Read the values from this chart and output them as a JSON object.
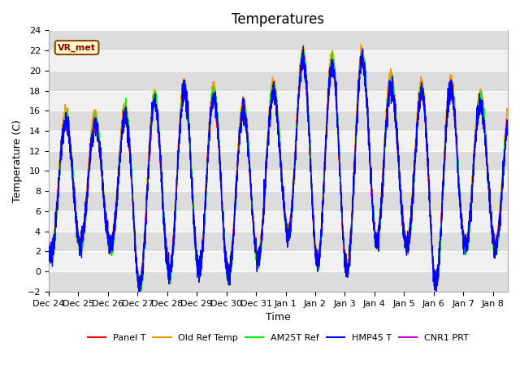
{
  "title": "Temperatures",
  "xlabel": "Time",
  "ylabel": "Temperature (C)",
  "ylim": [
    -2,
    24
  ],
  "yticks": [
    -2,
    0,
    2,
    4,
    6,
    8,
    10,
    12,
    14,
    16,
    18,
    20,
    22,
    24
  ],
  "num_days": 15.5,
  "xtick_labels": [
    "Dec 24",
    "Dec 25",
    "Dec 26",
    "Dec 27",
    "Dec 28",
    "Dec 29",
    "Dec 30",
    "Dec 31",
    "Jan 1",
    "Jan 2",
    "Jan 3",
    "Jan 4",
    "Jan 5",
    "Jan 6",
    "Jan 7",
    "Jan 8"
  ],
  "line_colors": [
    "#ff0000",
    "#ff9900",
    "#00ee00",
    "#0000ff",
    "#cc00cc"
  ],
  "line_names": [
    "Panel T",
    "Old Ref Temp",
    "AM25T Ref",
    "HMP45 T",
    "CNR1 PRT"
  ],
  "vr_met_label": "VR_met",
  "band_color_dark": "#dcdcdc",
  "band_color_light": "#f0f0f0",
  "title_fontsize": 12,
  "axis_label_fontsize": 9,
  "tick_fontsize": 8
}
